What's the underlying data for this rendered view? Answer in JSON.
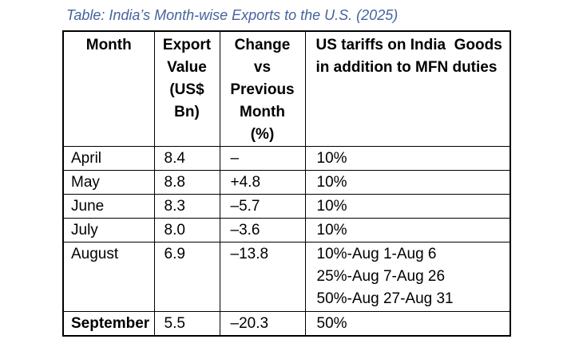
{
  "title": "Table: India’s Month-wise Exports to the U.S. (2025)",
  "colors": {
    "title_accent": "#44649C",
    "table_border": "#000000",
    "text": "#000000",
    "background": "#ffffff"
  },
  "table": {
    "headers": {
      "month": "Month",
      "export_value": "Export\nValue\n(US$\nBn)",
      "change": "Change\nvs\nPrevious\nMonth\n(%)",
      "tariffs": "US tariffs on India  Goods\nin addition to MFN duties"
    },
    "rows": [
      {
        "month": "April",
        "export_value": "8.4",
        "change": "–",
        "tariff": "10%"
      },
      {
        "month": "May",
        "export_value": "8.8",
        "change": "+4.8",
        "tariff": "10%"
      },
      {
        "month": "June",
        "export_value": "8.3",
        "change": "–5.7",
        "tariff": "10%"
      },
      {
        "month": "July",
        "export_value": "8.0",
        "change": "–3.6",
        "tariff": "10%"
      },
      {
        "month": "August",
        "export_value": "6.9",
        "change": "–13.8",
        "tariff": "10%-Aug 1-Aug 6\n25%-Aug 7-Aug 26\n50%-Aug 27-Aug 31"
      },
      {
        "month": "September",
        "export_value": "5.5",
        "change": "–20.3",
        "tariff": "50%"
      }
    ]
  }
}
